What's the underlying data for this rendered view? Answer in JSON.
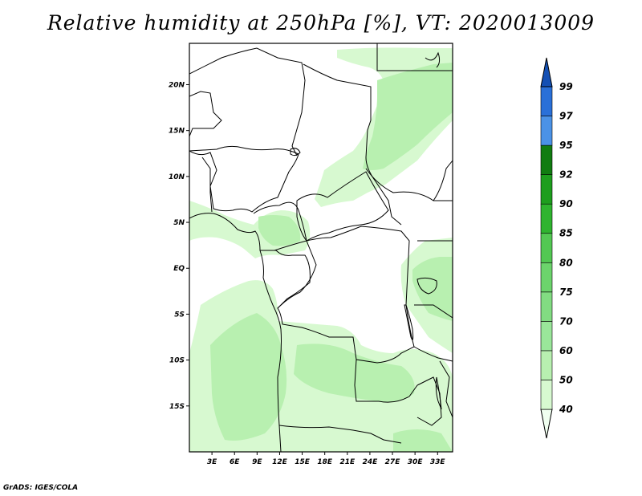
{
  "title": "Relative humidity at 250hPa [%], VT: 2020013009",
  "credit": "GrADS: IGES/COLA",
  "map": {
    "lon_range": [
      0,
      35
    ],
    "lat_range": [
      -20,
      24.5
    ],
    "lat_ticks": [
      "20N",
      "15N",
      "10N",
      "5N",
      "EQ",
      "5S",
      "10S",
      "15S"
    ],
    "lat_values": [
      20,
      15,
      10,
      5,
      0,
      -5,
      -10,
      -15
    ],
    "lon_ticks": [
      "3E",
      "6E",
      "9E",
      "12E",
      "15E",
      "18E",
      "21E",
      "24E",
      "27E",
      "30E",
      "33E"
    ],
    "lon_values": [
      3,
      6,
      9,
      12,
      15,
      18,
      21,
      24,
      27,
      30,
      33
    ]
  },
  "colorbar": {
    "levels": [
      "40",
      "50",
      "60",
      "70",
      "75",
      "80",
      "85",
      "90",
      "92",
      "95",
      "97",
      "99"
    ],
    "colors": [
      "#f0fff0",
      "#d7f9d0",
      "#b8f0b0",
      "#9ae69a",
      "#82dc82",
      "#6cd46c",
      "#53c853",
      "#2fb42f",
      "#1e9e1e",
      "#117c11",
      "#4b92e6",
      "#2a70d8",
      "#1450b4"
    ]
  }
}
